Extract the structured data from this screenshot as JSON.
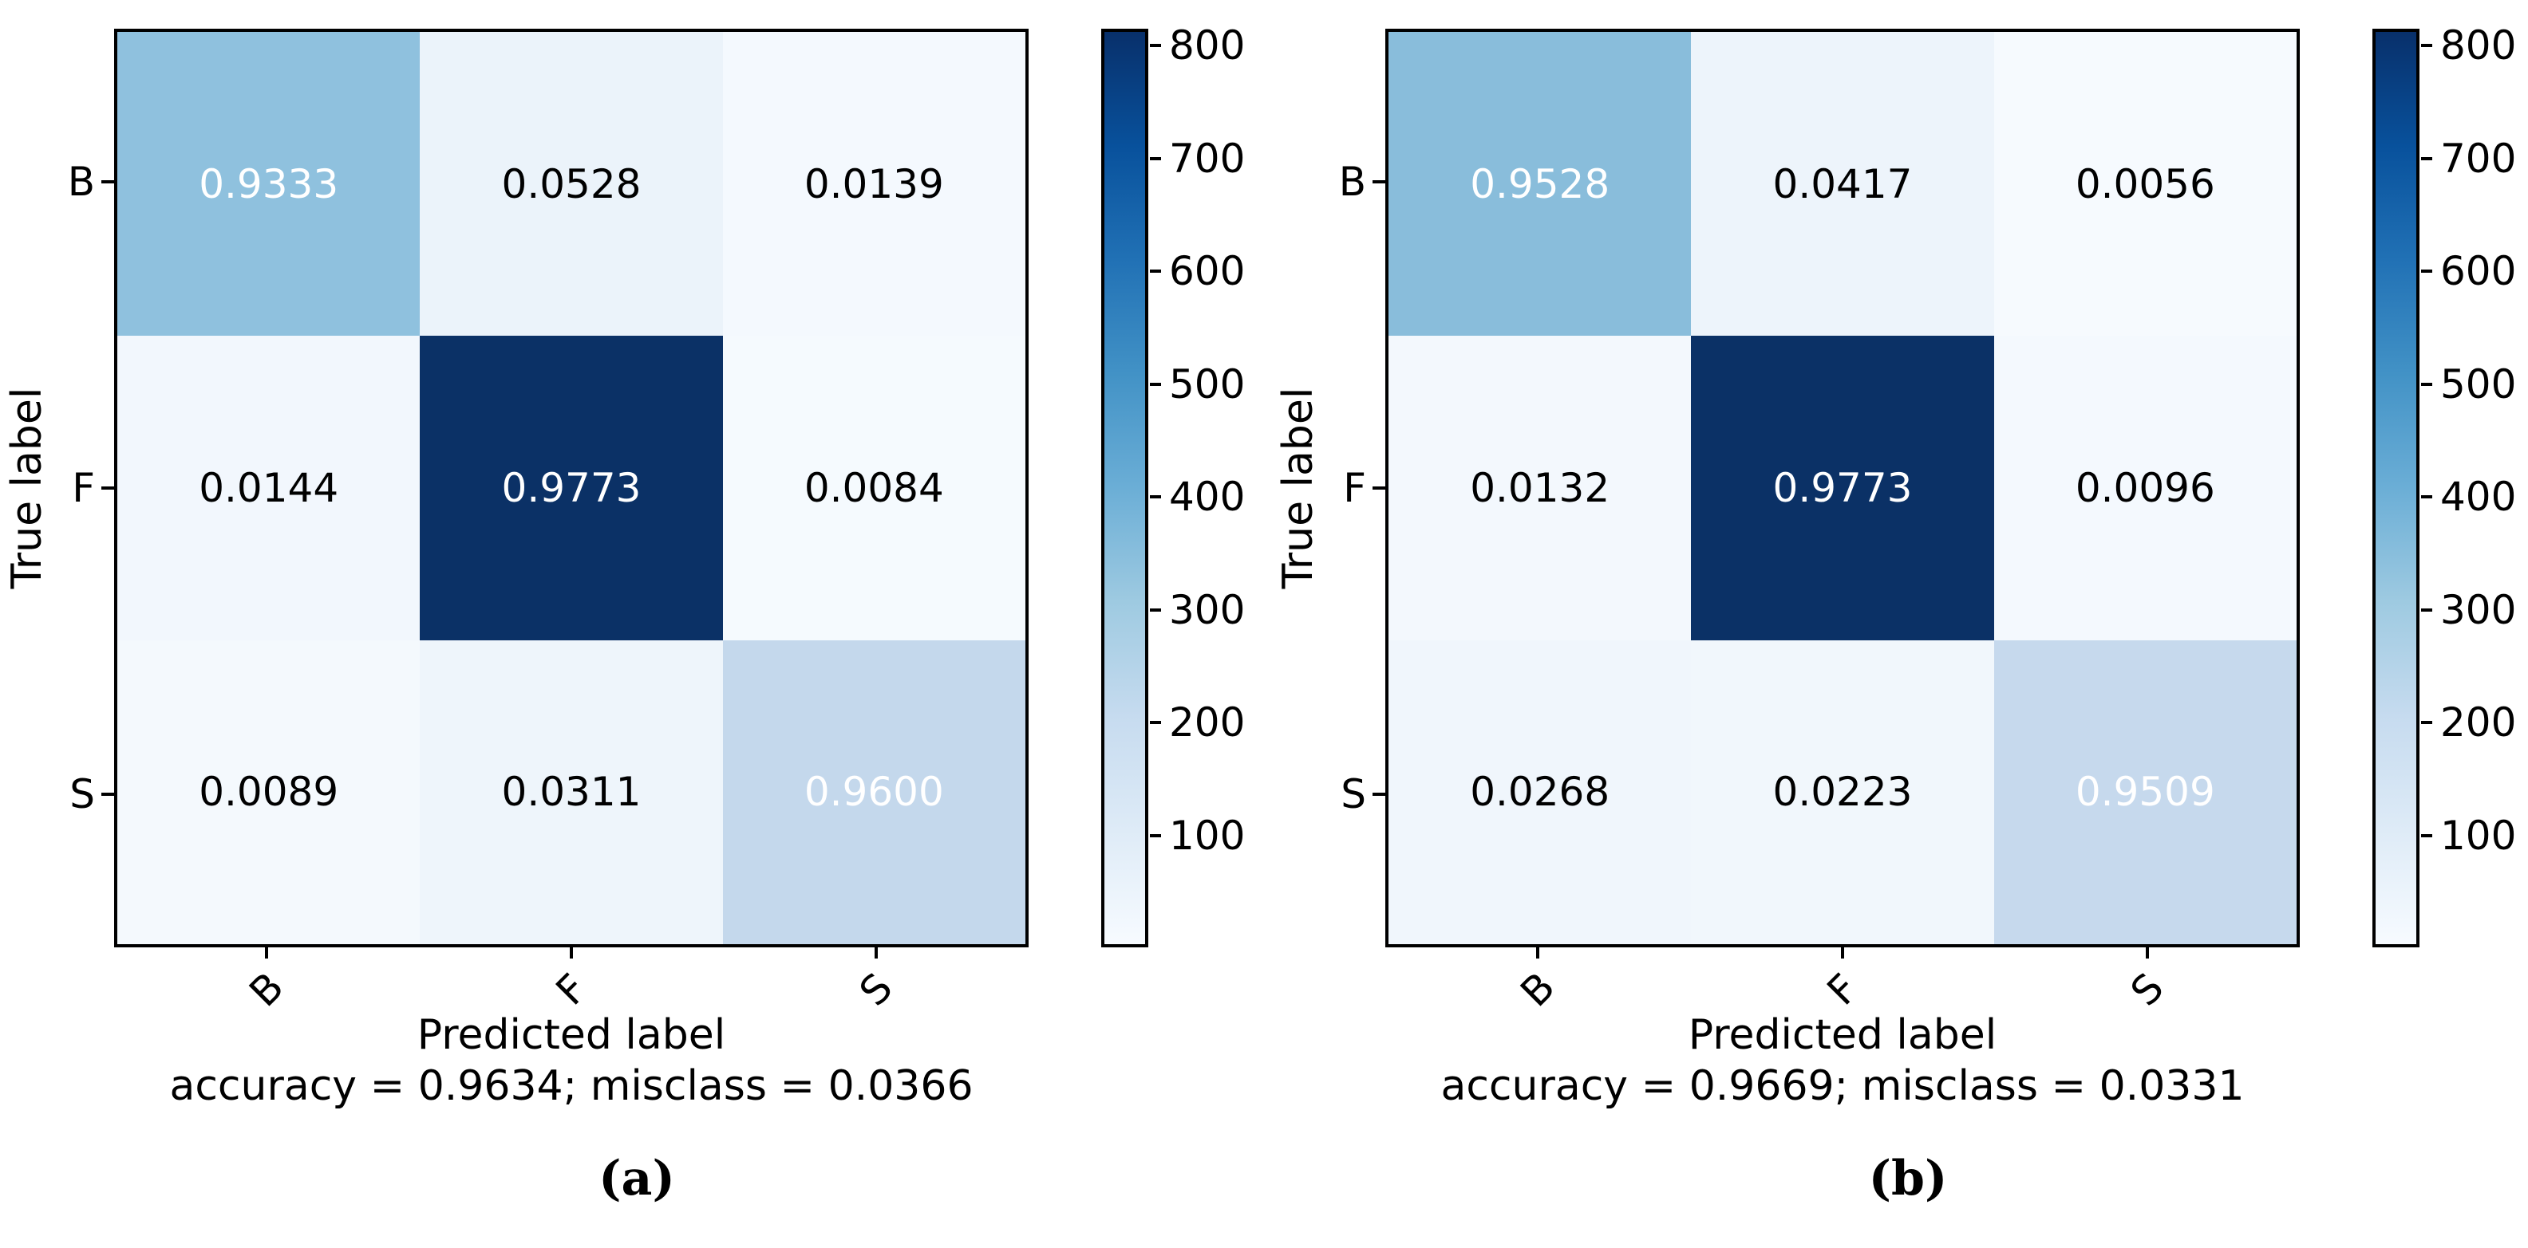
{
  "figure": {
    "background": "#ffffff",
    "colormap_name": "Blues",
    "colorbar_gradient_top_to_bottom": [
      "#08306b",
      "#08519c",
      "#2171b5",
      "#4292c6",
      "#6baed6",
      "#9ecae1",
      "#c6dbef",
      "#deebf7",
      "#f7fbff"
    ]
  },
  "panels": [
    {
      "caption": "(a)",
      "ylabel": "True label",
      "xlabel": "Predicted label",
      "stats": "accuracy = 0.9634; misclass = 0.0366",
      "row_labels": [
        "B",
        "F",
        "S"
      ],
      "col_labels": [
        "B",
        "F",
        "S"
      ],
      "colorbar_ticks": [
        "800",
        "700",
        "600",
        "500",
        "400",
        "300",
        "200",
        "100"
      ],
      "cells": [
        {
          "value": "0.9333",
          "style": "background:#8fc1de;color:#ffffff"
        },
        {
          "value": "0.0528",
          "style": "background:#ebf3fa;color:#000000"
        },
        {
          "value": "0.0139",
          "style": "background:#f4f9fe;color:#000000"
        },
        {
          "value": "0.0144",
          "style": "background:#f2f7fd;color:#000000"
        },
        {
          "value": "0.9773",
          "style": "background:#0b3166;color:#ffffff"
        },
        {
          "value": "0.0084",
          "style": "background:#f5fafe;color:#000000"
        },
        {
          "value": "0.0089",
          "style": "background:#f4f9fd;color:#000000"
        },
        {
          "value": "0.0311",
          "style": "background:#eef5fb;color:#000000"
        },
        {
          "value": "0.9600",
          "style": "background:#c4d8ec;color:#ffffff"
        }
      ]
    },
    {
      "caption": "(b)",
      "ylabel": "True label",
      "xlabel": "Predicted label",
      "stats": "accuracy = 0.9669; misclass = 0.0331",
      "row_labels": [
        "B",
        "F",
        "S"
      ],
      "col_labels": [
        "B",
        "F",
        "S"
      ],
      "colorbar_ticks": [
        "800",
        "700",
        "600",
        "500",
        "400",
        "300",
        "200",
        "100"
      ],
      "cells": [
        {
          "value": "0.9528",
          "style": "background:#89bddb;color:#ffffff"
        },
        {
          "value": "0.0417",
          "style": "background:#edf4fb;color:#000000"
        },
        {
          "value": "0.0056",
          "style": "background:#f6fafe;color:#000000"
        },
        {
          "value": "0.0132",
          "style": "background:#f3f8fd;color:#000000"
        },
        {
          "value": "0.9773",
          "style": "background:#0b3166;color:#ffffff"
        },
        {
          "value": "0.0096",
          "style": "background:#f4f9fe;color:#000000"
        },
        {
          "value": "0.0268",
          "style": "background:#f0f6fc;color:#000000"
        },
        {
          "value": "0.0223",
          "style": "background:#f1f7fc;color:#000000"
        },
        {
          "value": "0.9509",
          "style": "background:#c6d9ed;color:#ffffff"
        }
      ]
    }
  ],
  "chart_data": [
    {
      "type": "heatmap",
      "subtype": "confusion-matrix",
      "subfigure": "(a)",
      "x_labels": [
        "B",
        "F",
        "S"
      ],
      "y_labels": [
        "B",
        "F",
        "S"
      ],
      "values": [
        [
          0.9333,
          0.0528,
          0.0139
        ],
        [
          0.0144,
          0.9773,
          0.0084
        ],
        [
          0.0089,
          0.0311,
          0.96
        ]
      ],
      "xlabel": "Predicted label",
      "ylabel": "True label",
      "annotation": "accuracy = 0.9634; misclass = 0.0366",
      "colormap": "Blues",
      "colorbar": {
        "ticks": [
          100,
          200,
          300,
          400,
          500,
          600,
          700,
          800
        ],
        "approx_range": [
          0,
          815
        ],
        "position": "right"
      },
      "grid": false
    },
    {
      "type": "heatmap",
      "subtype": "confusion-matrix",
      "subfigure": "(b)",
      "x_labels": [
        "B",
        "F",
        "S"
      ],
      "y_labels": [
        "B",
        "F",
        "S"
      ],
      "values": [
        [
          0.9528,
          0.0417,
          0.0056
        ],
        [
          0.0132,
          0.9773,
          0.0096
        ],
        [
          0.0268,
          0.0223,
          0.9509
        ]
      ],
      "xlabel": "Predicted label",
      "ylabel": "True label",
      "annotation": "accuracy = 0.9669; misclass = 0.0331",
      "colormap": "Blues",
      "colorbar": {
        "ticks": [
          100,
          200,
          300,
          400,
          500,
          600,
          700,
          800
        ],
        "approx_range": [
          0,
          815
        ],
        "position": "right"
      },
      "grid": false
    }
  ]
}
